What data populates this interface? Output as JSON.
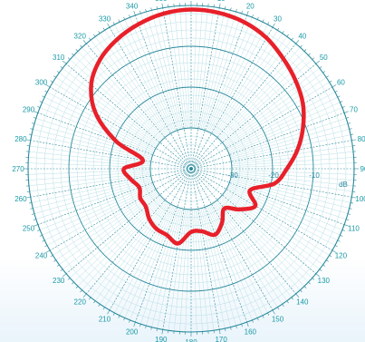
{
  "chart_data": {
    "type": "polar-line",
    "angle_direction": "clockwise",
    "zero_angle": "top",
    "angle_ticks": [
      0,
      10,
      20,
      30,
      40,
      50,
      60,
      70,
      80,
      90,
      100,
      110,
      120,
      130,
      140,
      150,
      160,
      170,
      180,
      190,
      200,
      210,
      220,
      230,
      240,
      250,
      260,
      270,
      280,
      290,
      300,
      310,
      320,
      330,
      340,
      350
    ],
    "angle_tick_labels": [
      "0",
      "10",
      "20",
      "30",
      "40",
      "50",
      "60",
      "70",
      "80",
      "90",
      "100",
      "110",
      "120",
      "130",
      "140",
      "150",
      "160",
      "170",
      "180",
      "190",
      "200",
      "210",
      "220",
      "230",
      "240",
      "250",
      "260",
      "270",
      "280",
      "290",
      "300",
      "310",
      "320",
      "330",
      "340",
      "350"
    ],
    "radial_unit": "dB",
    "radial_range": [
      -40,
      0
    ],
    "radial_rings": [
      -30,
      -20,
      -10,
      0
    ],
    "radial_ring_labels": [
      "-30",
      "-20",
      "-10"
    ],
    "minor_ring_step": 2,
    "minor_spoke_step": 2,
    "grid": true,
    "colors": {
      "grid_major": "#2a8a9c",
      "grid_minor": "#b8dfe6",
      "labels": "#1a9aa6",
      "series": "#e8202a",
      "background_bottom": "#e9f4fb"
    },
    "series": [
      {
        "angles": [
          0,
          10,
          20,
          30,
          40,
          50,
          60,
          70,
          80,
          90,
          100,
          110,
          120,
          130,
          140,
          150,
          160,
          170,
          180,
          190,
          200,
          210,
          220,
          230,
          240,
          250,
          260,
          270,
          280,
          290,
          300,
          310,
          320,
          330,
          340,
          350
        ],
        "values": [
          -1.0,
          -1.2,
          -1.8,
          -3.0,
          -4.8,
          -6.5,
          -8.3,
          -10.8,
          -13.5,
          -16.5,
          -19.2,
          -24.6,
          -21.8,
          -24.5,
          -27.3,
          -24.8,
          -22.8,
          -24.4,
          -24.5,
          -21.4,
          -22.7,
          -23.0,
          -24.0,
          -25.5,
          -25.6,
          -26.5,
          -25.0,
          -23.5,
          -28.0,
          -20.5,
          -13.0,
          -8.0,
          -5.2,
          -3.5,
          -2.3,
          -1.4
        ]
      }
    ]
  }
}
